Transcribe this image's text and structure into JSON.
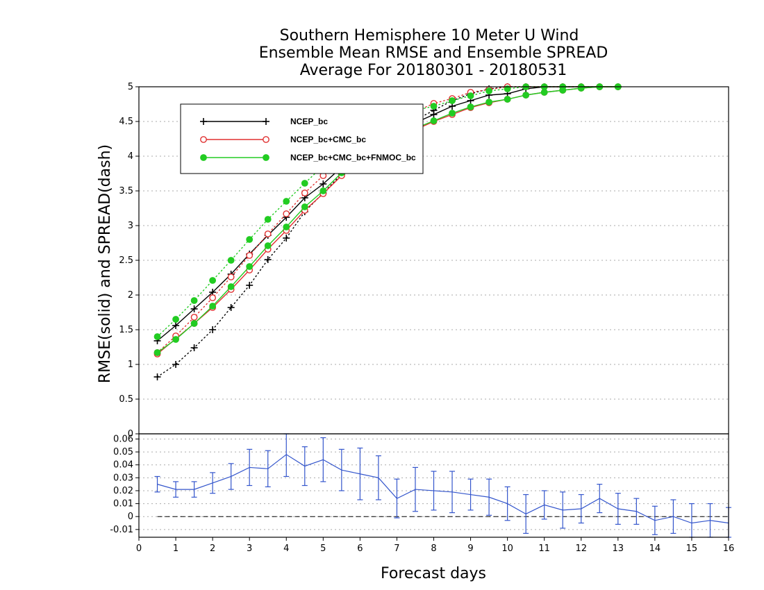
{
  "chart_data": [
    {
      "type": "line",
      "title": [
        "Southern Hemisphere 10 Meter U Wind",
        "Ensemble Mean RMSE and Ensemble SPREAD",
        "Average For 20180301 - 20180531"
      ],
      "ylabel": "RMSE(solid) and SPREAD(dash)",
      "xlabel": "",
      "xlim": [
        0,
        16
      ],
      "ylim": [
        0,
        5
      ],
      "yticks": [
        "0",
        "0.5",
        "1",
        "1.5",
        "2",
        "2.5",
        "3",
        "3.5",
        "4",
        "4.5",
        "5"
      ],
      "grid": true,
      "legend_position": "top-left",
      "x": [
        0.5,
        1,
        1.5,
        2,
        2.5,
        3,
        3.5,
        4,
        4.5,
        5,
        5.5,
        6,
        6.5,
        7,
        7.5,
        8,
        8.5,
        9,
        9.5,
        10,
        10.5,
        11,
        11.5,
        12,
        12.5,
        13
      ],
      "series": [
        {
          "name": "NCEP_bc",
          "metric": "RMSE",
          "style": "solid",
          "marker": "plus",
          "color": "#000000",
          "values": [
            1.34,
            1.56,
            1.8,
            2.04,
            2.3,
            2.59,
            2.86,
            3.12,
            3.4,
            3.6,
            3.84,
            4.02,
            4.2,
            4.34,
            4.48,
            4.6,
            4.72,
            4.8,
            4.88,
            4.9,
            4.97,
            5.0,
            5.0,
            5.0,
            5.0,
            5.0
          ]
        },
        {
          "name": "NCEP_bc",
          "metric": "SPREAD",
          "style": "dot",
          "marker": "plus",
          "color": "#000000",
          "values": [
            0.82,
            1.0,
            1.24,
            1.5,
            1.82,
            2.14,
            2.51,
            2.82,
            3.2,
            3.47,
            3.74,
            3.98,
            4.18,
            4.36,
            4.52,
            4.66,
            4.8,
            4.9,
            4.97,
            5.0,
            5.0,
            5.0,
            5.0,
            5.0,
            5.0,
            5.0
          ]
        },
        {
          "name": "NCEP_bc+CMC_bc",
          "metric": "RMSE",
          "style": "solid",
          "marker": "open-circle",
          "color": "#e03030",
          "values": [
            1.15,
            1.37,
            1.59,
            1.82,
            2.08,
            2.36,
            2.66,
            2.93,
            3.22,
            3.46,
            3.72,
            3.92,
            4.1,
            4.24,
            4.38,
            4.5,
            4.6,
            4.7,
            4.77,
            4.82,
            4.88,
            4.92,
            4.95,
            4.98,
            5.0,
            5.0
          ]
        },
        {
          "name": "NCEP_bc+CMC_bc",
          "metric": "SPREAD",
          "style": "dot",
          "marker": "open-circle",
          "color": "#e03030",
          "values": [
            1.17,
            1.41,
            1.68,
            1.96,
            2.26,
            2.57,
            2.88,
            3.17,
            3.47,
            3.72,
            3.96,
            4.16,
            4.34,
            4.5,
            4.64,
            4.76,
            4.83,
            4.92,
            4.96,
            5.0,
            5.0,
            5.0,
            5.0,
            5.0,
            5.0,
            5.0
          ]
        },
        {
          "name": "NCEP_bc+CMC_bc+FNMOC_bc",
          "metric": "RMSE",
          "style": "solid",
          "marker": "filled-circle",
          "color": "#22cc22",
          "values": [
            1.17,
            1.36,
            1.59,
            1.84,
            2.12,
            2.41,
            2.71,
            2.98,
            3.27,
            3.5,
            3.76,
            3.95,
            4.12,
            4.26,
            4.4,
            4.51,
            4.62,
            4.71,
            4.78,
            4.82,
            4.88,
            4.92,
            4.95,
            4.98,
            5.0,
            5.0
          ]
        },
        {
          "name": "NCEP_bc+CMC_bc+FNMOC_bc",
          "metric": "SPREAD",
          "style": "dot",
          "marker": "filled-circle",
          "color": "#22cc22",
          "values": [
            1.4,
            1.65,
            1.92,
            2.21,
            2.5,
            2.8,
            3.09,
            3.35,
            3.61,
            3.86,
            4.06,
            4.24,
            4.4,
            4.54,
            4.66,
            4.72,
            4.8,
            4.87,
            4.94,
            4.97,
            5.0,
            5.0,
            5.0,
            5.0,
            5.0,
            5.0
          ]
        }
      ]
    },
    {
      "type": "line",
      "title": "",
      "xlabel": "Forecast days",
      "ylabel": "",
      "xlim": [
        0,
        16
      ],
      "ylim": [
        -0.016,
        0.064
      ],
      "xticks": [
        "0",
        "1",
        "2",
        "3",
        "4",
        "5",
        "6",
        "7",
        "8",
        "9",
        "10",
        "11",
        "12",
        "13",
        "14",
        "15",
        "16"
      ],
      "yticks": [
        "-0.01",
        "0",
        "0.01",
        "0.02",
        "0.03",
        "0.04",
        "0.05",
        "0.06"
      ],
      "yticks_values": [
        -0.01,
        0,
        0.01,
        0.02,
        0.03,
        0.04,
        0.05,
        0.06
      ],
      "grid": true,
      "reference_line": 0,
      "x": [
        0.5,
        1,
        1.5,
        2,
        2.5,
        3,
        3.5,
        4,
        4.5,
        5,
        5.5,
        6,
        6.5,
        7,
        7.5,
        8,
        8.5,
        9,
        9.5,
        10,
        10.5,
        11,
        11.5,
        12,
        12.5,
        13,
        13.5,
        14,
        14.5,
        15,
        15.5,
        16
      ],
      "series": [
        {
          "name": "",
          "color": "#3355cc",
          "values": [
            0.025,
            0.021,
            0.021,
            0.026,
            0.031,
            0.038,
            0.037,
            0.048,
            0.039,
            0.044,
            0.036,
            0.033,
            0.03,
            0.014,
            0.021,
            0.02,
            0.019,
            0.017,
            0.015,
            0.01,
            0.002,
            0.009,
            0.005,
            0.006,
            0.014,
            0.006,
            0.004,
            -0.003,
            0.0,
            -0.005,
            -0.003,
            -0.005
          ],
          "err": [
            0.006,
            0.006,
            0.006,
            0.008,
            0.01,
            0.014,
            0.014,
            0.017,
            0.015,
            0.017,
            0.016,
            0.02,
            0.017,
            0.015,
            0.017,
            0.015,
            0.016,
            0.012,
            0.014,
            0.013,
            0.015,
            0.011,
            0.014,
            0.011,
            0.011,
            0.012,
            0.01,
            0.011,
            0.013,
            0.015,
            0.013,
            0.012
          ]
        }
      ]
    }
  ]
}
